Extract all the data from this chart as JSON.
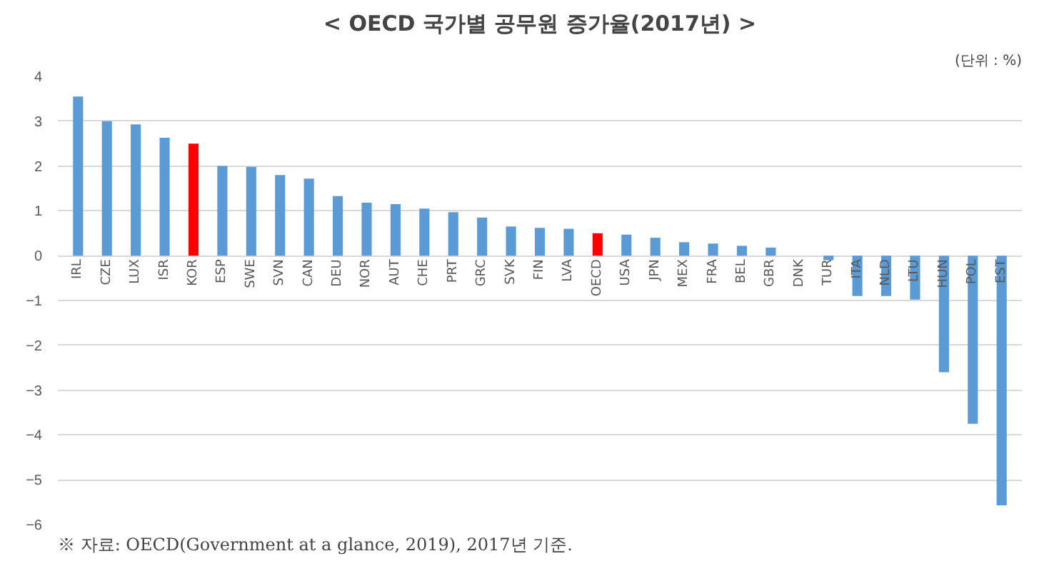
{
  "chart_data": {
    "type": "bar",
    "title": "< OECD 국가별 공무원 증가율(2017년) >",
    "subtitle": "(단위 : %)",
    "categories": [
      "IRL",
      "CZE",
      "LUX",
      "ISR",
      "KOR",
      "ESP",
      "SWE",
      "SVN",
      "CAN",
      "DEU",
      "NOR",
      "AUT",
      "CHE",
      "PRT",
      "GRC",
      "SVK",
      "FIN",
      "LVA",
      "OECD",
      "USA",
      "JPN",
      "MEX",
      "FRA",
      "BEL",
      "GBR",
      "DNK",
      "TUR",
      "ITA",
      "NLD",
      "LTU",
      "HUN",
      "POL",
      "EST"
    ],
    "values": [
      3.55,
      3.0,
      2.93,
      2.63,
      2.5,
      2.0,
      1.98,
      1.8,
      1.72,
      1.33,
      1.18,
      1.15,
      1.05,
      0.97,
      0.85,
      0.65,
      0.62,
      0.6,
      0.5,
      0.47,
      0.4,
      0.3,
      0.27,
      0.22,
      0.18,
      0,
      -0.1,
      -0.9,
      -0.9,
      -0.98,
      -2.6,
      -3.75,
      -5.57
    ],
    "colors": [
      "#5b9bd5",
      "#5b9bd5",
      "#5b9bd5",
      "#5b9bd5",
      "#ff0000",
      "#5b9bd5",
      "#5b9bd5",
      "#5b9bd5",
      "#5b9bd5",
      "#5b9bd5",
      "#5b9bd5",
      "#5b9bd5",
      "#5b9bd5",
      "#5b9bd5",
      "#5b9bd5",
      "#5b9bd5",
      "#5b9bd5",
      "#5b9bd5",
      "#ff0000",
      "#5b9bd5",
      "#5b9bd5",
      "#5b9bd5",
      "#5b9bd5",
      "#5b9bd5",
      "#5b9bd5",
      "#5b9bd5",
      "#5b9bd5",
      "#5b9bd5",
      "#5b9bd5",
      "#5b9bd5",
      "#5b9bd5",
      "#5b9bd5",
      "#5b9bd5"
    ],
    "ylim": [
      -6,
      4
    ],
    "yticks": [
      -6,
      -5,
      -4,
      -3,
      -2,
      -1,
      0,
      1,
      2,
      3,
      4
    ],
    "grid": "y",
    "annotations": [
      "※ 자료: OECD(Government at a glance, 2019), 2017년 기준."
    ]
  }
}
